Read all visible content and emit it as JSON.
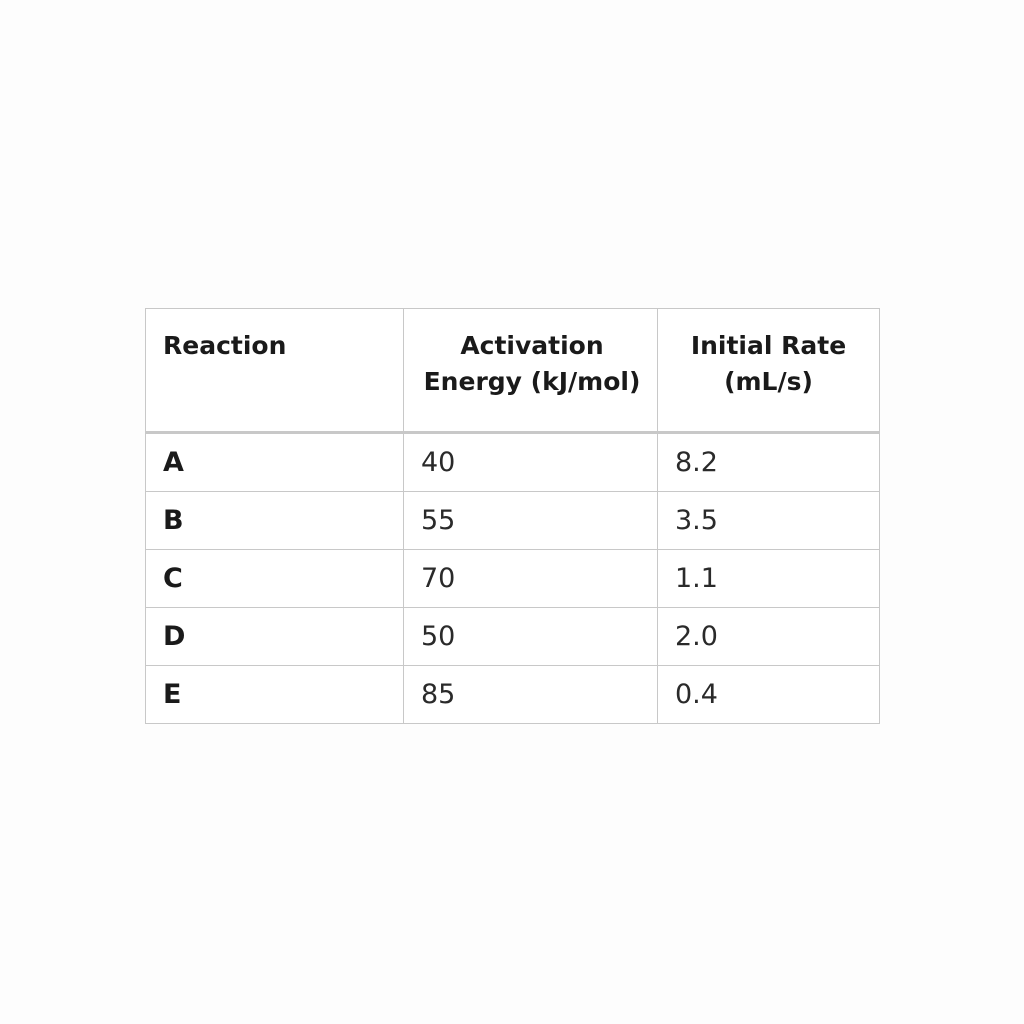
{
  "table": {
    "headers": [
      "Reaction",
      "Activation Energy (kJ/mol)",
      "Initial Rate (mL/s)"
    ],
    "rows": [
      [
        "A",
        "40",
        "8.2"
      ],
      [
        "B",
        "55",
        "3.5"
      ],
      [
        "C",
        "70",
        "1.1"
      ],
      [
        "D",
        "50",
        "2.0"
      ],
      [
        "E",
        "85",
        "0.4"
      ]
    ]
  }
}
